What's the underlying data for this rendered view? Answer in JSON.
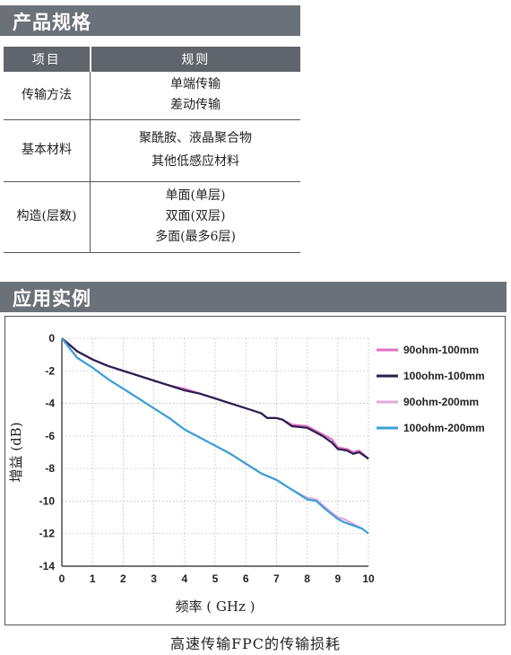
{
  "spec_section": {
    "title": "产品规格",
    "header": {
      "item": "项目",
      "rule": "规则"
    },
    "rows": [
      {
        "item": "传输方法",
        "lines": [
          "单端传输",
          "差动传输"
        ]
      },
      {
        "item": "基本材料",
        "lines": [
          "聚酰胺、液晶聚合物",
          "其他低感应材料"
        ]
      },
      {
        "item": "构造(层数)",
        "lines": [
          "单面(单层)",
          "双面(双层)",
          "多面(最多6层)"
        ]
      }
    ]
  },
  "application_section": {
    "title": "应用实例",
    "caption": "高速传输FPC的传输损耗"
  },
  "chart_data": {
    "type": "line",
    "xlabel": "频率 ( GHz )",
    "ylabel": "增益 (dB)",
    "xlim": [
      0,
      10
    ],
    "ylim": [
      -14,
      0
    ],
    "xticks": [
      0,
      1,
      2,
      3,
      4,
      5,
      6,
      7,
      8,
      9,
      10
    ],
    "yticks": [
      0,
      -2,
      -4,
      -6,
      -8,
      -10,
      -12,
      -14
    ],
    "grid": true,
    "legend_position": "right",
    "series": [
      {
        "name": "90ohm-100mm",
        "color": "#e070c0",
        "x": [
          0,
          0.5,
          1,
          1.5,
          2,
          2.5,
          3,
          3.5,
          4,
          4.5,
          5,
          5.5,
          6,
          6.5,
          6.7,
          7,
          7.2,
          7.5,
          8,
          8.2,
          8.5,
          8.8,
          9,
          9.3,
          9.5,
          9.7,
          10
        ],
        "y": [
          0,
          -0.8,
          -1.3,
          -1.7,
          -2.0,
          -2.3,
          -2.6,
          -2.9,
          -3.1,
          -3.4,
          -3.7,
          -4.0,
          -4.3,
          -4.6,
          -4.9,
          -4.9,
          -5.0,
          -5.3,
          -5.4,
          -5.6,
          -5.9,
          -6.2,
          -6.7,
          -6.8,
          -7.0,
          -6.9,
          -7.4
        ]
      },
      {
        "name": "100ohm-100mm",
        "color": "#2a1e4e",
        "x": [
          0,
          0.5,
          1,
          1.5,
          2,
          2.5,
          3,
          3.5,
          4,
          4.5,
          5,
          5.5,
          6,
          6.5,
          6.7,
          7,
          7.2,
          7.5,
          8,
          8.2,
          8.5,
          8.8,
          9,
          9.3,
          9.5,
          9.7,
          10
        ],
        "y": [
          0,
          -0.8,
          -1.3,
          -1.7,
          -2.0,
          -2.3,
          -2.6,
          -2.9,
          -3.2,
          -3.4,
          -3.7,
          -4.0,
          -4.3,
          -4.6,
          -4.9,
          -4.9,
          -5.0,
          -5.4,
          -5.5,
          -5.7,
          -6.0,
          -6.4,
          -6.8,
          -6.9,
          -7.1,
          -7.0,
          -7.4
        ]
      },
      {
        "name": "90ohm-200mm",
        "color": "#e0a8d8",
        "x": [
          0,
          0.5,
          1,
          1.5,
          2,
          2.5,
          3,
          3.5,
          4,
          4.5,
          5,
          5.5,
          6,
          6.5,
          7,
          7.5,
          8,
          8.3,
          8.6,
          9,
          9.2,
          9.5,
          9.8,
          10
        ],
        "y": [
          0,
          -1.2,
          -1.8,
          -2.5,
          -3.1,
          -3.7,
          -4.3,
          -4.9,
          -5.6,
          -6.1,
          -6.6,
          -7.1,
          -7.7,
          -8.3,
          -8.7,
          -9.3,
          -9.8,
          -9.9,
          -10.4,
          -11.0,
          -11.1,
          -11.4,
          -11.7,
          -12.0
        ]
      },
      {
        "name": "100ohm-200mm",
        "color": "#3aa0d8",
        "x": [
          0,
          0.5,
          1,
          1.5,
          2,
          2.5,
          3,
          3.5,
          4,
          4.5,
          5,
          5.5,
          6,
          6.5,
          7,
          7.5,
          8,
          8.3,
          8.6,
          9,
          9.2,
          9.5,
          9.8,
          10
        ],
        "y": [
          0,
          -1.2,
          -1.8,
          -2.5,
          -3.1,
          -3.7,
          -4.3,
          -4.9,
          -5.6,
          -6.1,
          -6.6,
          -7.1,
          -7.7,
          -8.3,
          -8.7,
          -9.3,
          -9.9,
          -10.0,
          -10.5,
          -11.1,
          -11.3,
          -11.5,
          -11.7,
          -12.0
        ]
      }
    ]
  }
}
